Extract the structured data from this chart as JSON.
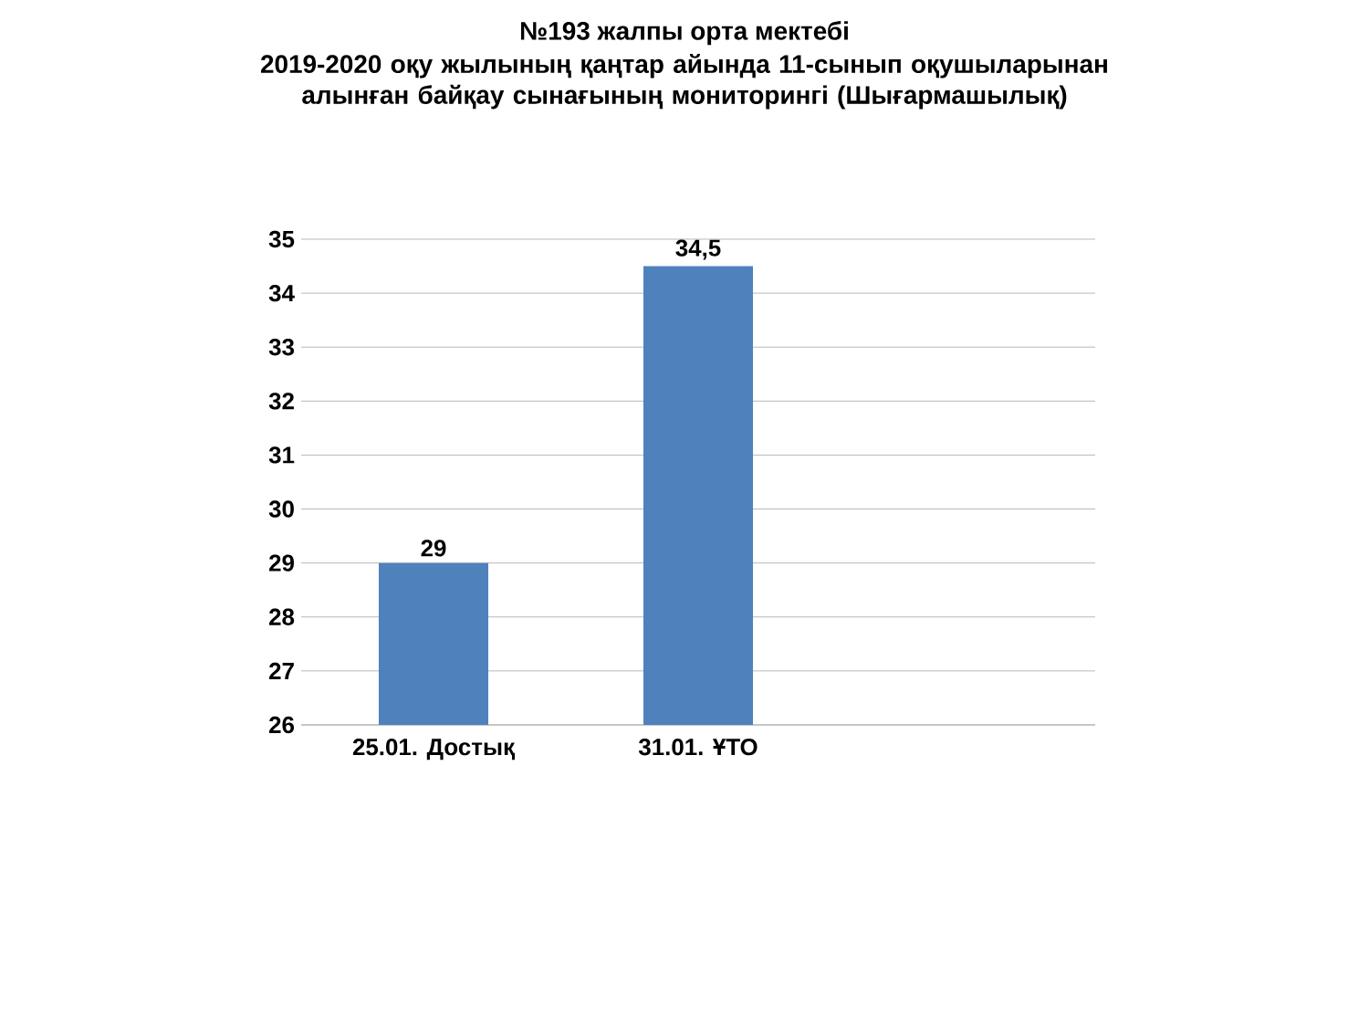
{
  "chart_data": {
    "type": "bar",
    "title": "№193  жалпы  орта  мектебі",
    "subtitle": "2019-2020  оқу жылының қаңтар айында 11-сынып оқушыларынан алынған байқау сынағының мониторингі (Шығармашылық)",
    "categories": [
      "25.01. Достық",
      "31.01. ҰТО",
      null
    ],
    "values": [
      29,
      34.5,
      null
    ],
    "value_labels": [
      "29",
      "34,5",
      null
    ],
    "color": "#4f81bd",
    "ylim": [
      26,
      35
    ],
    "yticks": [
      26,
      27,
      28,
      29,
      30,
      31,
      32,
      33,
      34,
      35
    ],
    "grid": "y"
  }
}
